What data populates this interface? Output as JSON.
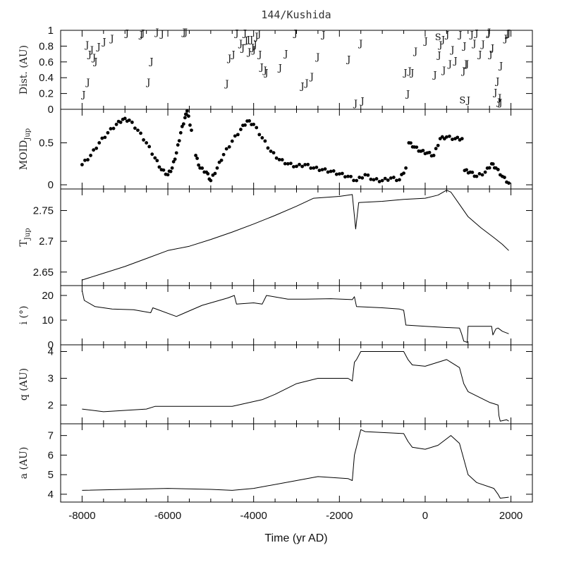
{
  "figure_title": "144/Kushida",
  "x_axis_label": "Time (yr AD)",
  "colors": {
    "ink": "#000000",
    "background": "#ffffff"
  },
  "chart_data": [
    {
      "panel": "distance",
      "type": "scatter",
      "ylabel": "Dist. (AU)",
      "xlim": [
        -8500,
        2500
      ],
      "ylim": [
        0,
        1
      ],
      "yticks": [
        0,
        0.2,
        0.4,
        0.6,
        0.8,
        1
      ],
      "xticks": [
        -8000,
        -6000,
        -4000,
        -2000,
        0,
        2000
      ],
      "marker_note": "points drawn as letters",
      "points": [
        {
          "x": -7960,
          "y": 0.19,
          "m": "J"
        },
        {
          "x": -7880,
          "y": 0.82,
          "m": "J"
        },
        {
          "x": -7860,
          "y": 0.35,
          "m": "J"
        },
        {
          "x": -7820,
          "y": 0.7,
          "m": "J"
        },
        {
          "x": -7770,
          "y": 0.76,
          "m": "J"
        },
        {
          "x": -7720,
          "y": 0.66,
          "m": "J"
        },
        {
          "x": -7680,
          "y": 0.61,
          "m": "J"
        },
        {
          "x": -7610,
          "y": 0.8,
          "m": "J"
        },
        {
          "x": -7480,
          "y": 0.86,
          "m": "J"
        },
        {
          "x": -7300,
          "y": 0.9,
          "m": "J"
        },
        {
          "x": -6950,
          "y": 0.97,
          "m": "J"
        },
        {
          "x": -6620,
          "y": 0.95,
          "m": "J"
        },
        {
          "x": -6580,
          "y": 0.97,
          "m": "J"
        },
        {
          "x": -6450,
          "y": 0.35,
          "m": "J"
        },
        {
          "x": -6380,
          "y": 0.61,
          "m": "J"
        },
        {
          "x": -6250,
          "y": 0.98,
          "m": "J"
        },
        {
          "x": -6130,
          "y": 0.96,
          "m": "J"
        },
        {
          "x": -5620,
          "y": 0.98,
          "m": "J"
        },
        {
          "x": -5580,
          "y": 0.98,
          "m": "J"
        },
        {
          "x": -4620,
          "y": 0.33,
          "m": "J"
        },
        {
          "x": -4560,
          "y": 0.65,
          "m": "J"
        },
        {
          "x": -4470,
          "y": 0.7,
          "m": "J"
        },
        {
          "x": -4390,
          "y": 0.97,
          "m": "J"
        },
        {
          "x": -4300,
          "y": 0.84,
          "m": "J"
        },
        {
          "x": -4250,
          "y": 0.78,
          "m": "J"
        },
        {
          "x": -4200,
          "y": 0.97,
          "m": "J"
        },
        {
          "x": -4170,
          "y": 0.88,
          "m": "J"
        },
        {
          "x": -4120,
          "y": 0.89,
          "m": "J"
        },
        {
          "x": -4100,
          "y": 0.73,
          "m": "J"
        },
        {
          "x": -4050,
          "y": 0.89,
          "m": "J"
        },
        {
          "x": -4020,
          "y": 0.79,
          "m": "J"
        },
        {
          "x": -3990,
          "y": 0.76,
          "m": "J"
        },
        {
          "x": -3960,
          "y": 0.82,
          "m": "J"
        },
        {
          "x": -3930,
          "y": 0.93,
          "m": "J"
        },
        {
          "x": -3870,
          "y": 0.96,
          "m": "J"
        },
        {
          "x": -3850,
          "y": 0.7,
          "m": "J"
        },
        {
          "x": -3810,
          "y": 0.54,
          "m": "J"
        },
        {
          "x": -3730,
          "y": 0.5,
          "m": "J"
        },
        {
          "x": -3700,
          "y": 0.47,
          "m": "J"
        },
        {
          "x": -3380,
          "y": 0.53,
          "m": "J"
        },
        {
          "x": -3240,
          "y": 0.71,
          "m": "J"
        },
        {
          "x": -3020,
          "y": 0.97,
          "m": "J"
        },
        {
          "x": -2860,
          "y": 0.3,
          "m": "J"
        },
        {
          "x": -2760,
          "y": 0.34,
          "m": "J"
        },
        {
          "x": -2640,
          "y": 0.42,
          "m": "J"
        },
        {
          "x": -2500,
          "y": 0.67,
          "m": "J"
        },
        {
          "x": -2370,
          "y": 0.95,
          "m": "J"
        },
        {
          "x": -1780,
          "y": 0.64,
          "m": "J"
        },
        {
          "x": -1620,
          "y": 0.08,
          "m": "J"
        },
        {
          "x": -1500,
          "y": 0.84,
          "m": "J"
        },
        {
          "x": -1460,
          "y": 0.11,
          "m": "J"
        },
        {
          "x": -460,
          "y": 0.47,
          "m": "J"
        },
        {
          "x": -400,
          "y": 0.2,
          "m": "J"
        },
        {
          "x": -360,
          "y": 0.49,
          "m": "J"
        },
        {
          "x": -300,
          "y": 0.47,
          "m": "J"
        },
        {
          "x": -220,
          "y": 0.74,
          "m": "J"
        },
        {
          "x": 20,
          "y": 0.87,
          "m": "J"
        },
        {
          "x": 230,
          "y": 0.44,
          "m": "J"
        },
        {
          "x": 300,
          "y": 0.92,
          "m": "S"
        },
        {
          "x": 330,
          "y": 0.69,
          "m": "J"
        },
        {
          "x": 360,
          "y": 0.82,
          "m": "J"
        },
        {
          "x": 420,
          "y": 0.89,
          "m": "J"
        },
        {
          "x": 440,
          "y": 0.5,
          "m": "J"
        },
        {
          "x": 520,
          "y": 0.95,
          "m": "J"
        },
        {
          "x": 580,
          "y": 0.58,
          "m": "J"
        },
        {
          "x": 640,
          "y": 0.76,
          "m": "J"
        },
        {
          "x": 710,
          "y": 0.62,
          "m": "J"
        },
        {
          "x": 820,
          "y": 0.95,
          "m": "J"
        },
        {
          "x": 870,
          "y": 0.12,
          "m": "S"
        },
        {
          "x": 900,
          "y": 0.49,
          "m": "J"
        },
        {
          "x": 920,
          "y": 0.81,
          "m": "J"
        },
        {
          "x": 950,
          "y": 0.58,
          "m": "J"
        },
        {
          "x": 980,
          "y": 0.58,
          "m": "J"
        },
        {
          "x": 1010,
          "y": 0.12,
          "m": "J"
        },
        {
          "x": 1090,
          "y": 0.95,
          "m": "J"
        },
        {
          "x": 1150,
          "y": 0.84,
          "m": "J"
        },
        {
          "x": 1200,
          "y": 0.97,
          "m": "J"
        },
        {
          "x": 1280,
          "y": 0.7,
          "m": "J"
        },
        {
          "x": 1350,
          "y": 0.83,
          "m": "J"
        },
        {
          "x": 1480,
          "y": 0.97,
          "m": "J"
        },
        {
          "x": 1490,
          "y": 0.98,
          "m": "J"
        },
        {
          "x": 1530,
          "y": 0.7,
          "m": "J"
        },
        {
          "x": 1570,
          "y": 0.78,
          "m": "J"
        },
        {
          "x": 1640,
          "y": 0.22,
          "m": "J"
        },
        {
          "x": 1690,
          "y": 0.36,
          "m": "J"
        },
        {
          "x": 1720,
          "y": 0.1,
          "m": "J"
        },
        {
          "x": 1740,
          "y": 0.15,
          "m": "J"
        },
        {
          "x": 1760,
          "y": 0.09,
          "m": "J"
        },
        {
          "x": 1770,
          "y": 0.56,
          "m": "J"
        },
        {
          "x": 1880,
          "y": 0.9,
          "m": "J"
        },
        {
          "x": 1920,
          "y": 0.96,
          "m": "J"
        },
        {
          "x": 1950,
          "y": 0.97,
          "m": "J"
        }
      ]
    },
    {
      "panel": "moid",
      "type": "scatter",
      "ylabel": "MOID",
      "ylabel_sub": "Jup",
      "xlim": [
        -8500,
        2500
      ],
      "ylim": [
        -0.05,
        0.9
      ],
      "yticks": [
        0,
        0.5
      ],
      "dots": [
        [
          -8000,
          0.24
        ],
        [
          -7800,
          0.35
        ],
        [
          -7600,
          0.5
        ],
        [
          -7400,
          0.62
        ],
        [
          -7200,
          0.72
        ],
        [
          -7050,
          0.78
        ],
        [
          -6900,
          0.77
        ],
        [
          -6700,
          0.65
        ],
        [
          -6500,
          0.5
        ],
        [
          -6300,
          0.32
        ],
        [
          -6150,
          0.18
        ],
        [
          -6000,
          0.12
        ],
        [
          -5900,
          0.2
        ],
        [
          -5800,
          0.38
        ],
        [
          -5700,
          0.62
        ],
        [
          -5600,
          0.8
        ],
        [
          -5550,
          0.88
        ],
        [
          -5450,
          0.65
        ],
        [
          -5350,
          0.35
        ],
        [
          -5250,
          0.2
        ],
        [
          -5100,
          0.15
        ],
        [
          -5000,
          0.05
        ],
        [
          -4850,
          0.2
        ],
        [
          -4700,
          0.36
        ],
        [
          -4500,
          0.52
        ],
        [
          -4300,
          0.66
        ],
        [
          -4150,
          0.76
        ],
        [
          -4000,
          0.72
        ],
        [
          -3800,
          0.56
        ],
        [
          -3600,
          0.4
        ],
        [
          -3400,
          0.3
        ],
        [
          -3200,
          0.25
        ],
        [
          -3000,
          0.22
        ],
        [
          -2800,
          0.24
        ],
        [
          -2600,
          0.2
        ],
        [
          -2400,
          0.18
        ],
        [
          -2200,
          0.16
        ],
        [
          -2000,
          0.13
        ],
        [
          -1800,
          0.1
        ],
        [
          -1600,
          0.05
        ],
        [
          -1400,
          0.12
        ],
        [
          -1200,
          0.06
        ],
        [
          -1000,
          0.05
        ],
        [
          -800,
          0.08
        ],
        [
          -600,
          0.06
        ],
        [
          -450,
          0.2
        ],
        [
          -380,
          0.5
        ],
        [
          -250,
          0.45
        ],
        [
          -100,
          0.4
        ],
        [
          50,
          0.38
        ],
        [
          200,
          0.35
        ],
        [
          350,
          0.55
        ],
        [
          500,
          0.57
        ],
        [
          700,
          0.55
        ],
        [
          860,
          0.55
        ],
        [
          920,
          0.17
        ],
        [
          1050,
          0.15
        ],
        [
          1200,
          0.1
        ],
        [
          1400,
          0.15
        ],
        [
          1550,
          0.25
        ],
        [
          1650,
          0.2
        ],
        [
          1800,
          0.1
        ],
        [
          1950,
          0.02
        ]
      ]
    },
    {
      "panel": "tjup",
      "type": "line",
      "ylabel": "T",
      "ylabel_sub": "Jup",
      "xlim": [
        -8500,
        2500
      ],
      "ylim": [
        2.628,
        2.785
      ],
      "yticks": [
        2.65,
        2.7,
        2.75
      ],
      "x": [
        -8000,
        -7500,
        -7000,
        -6500,
        -6000,
        -5500,
        -5000,
        -4500,
        -4000,
        -3500,
        -3000,
        -2600,
        -2000,
        -1700,
        -1620,
        -1550,
        -1000,
        -500,
        0,
        300,
        500,
        600,
        800,
        1000,
        1300,
        1600,
        1800,
        1950
      ],
      "y": [
        2.637,
        2.648,
        2.659,
        2.672,
        2.685,
        2.692,
        2.703,
        2.715,
        2.728,
        2.742,
        2.757,
        2.77,
        2.773,
        2.776,
        2.72,
        2.763,
        2.765,
        2.768,
        2.77,
        2.775,
        2.783,
        2.78,
        2.76,
        2.74,
        2.722,
        2.706,
        2.695,
        2.685
      ]
    },
    {
      "panel": "inclination",
      "type": "line",
      "ylabel": "i (°)",
      "xlim": [
        -8500,
        2500
      ],
      "ylim": [
        0,
        24
      ],
      "yticks": [
        0,
        10,
        20
      ],
      "x": [
        -8000,
        -7950,
        -7700,
        -7300,
        -6800,
        -6400,
        -6350,
        -5800,
        -5600,
        -5200,
        -4600,
        -4450,
        -4400,
        -4000,
        -3800,
        -3700,
        -3200,
        -2800,
        -2200,
        -1700,
        -1650,
        -1600,
        -1000,
        -600,
        -500,
        -450,
        0,
        500,
        800,
        850,
        900,
        980,
        1000,
        1550,
        1580,
        1650,
        1700,
        1800,
        1950
      ],
      "y": [
        22,
        18,
        15.5,
        14.5,
        14.2,
        13,
        15,
        11.5,
        13,
        16,
        19,
        20,
        16.5,
        17,
        16.5,
        20,
        18.5,
        18.5,
        18.7,
        18.3,
        19.5,
        15.5,
        15,
        14.5,
        14,
        8,
        7.5,
        7,
        6.8,
        4.5,
        1.5,
        1,
        7.5,
        7.5,
        4,
        6.5,
        6.8,
        5.5,
        4.5
      ]
    },
    {
      "panel": "perihelion",
      "type": "line",
      "ylabel": "q (AU)",
      "xlim": [
        -8500,
        2500
      ],
      "ylim": [
        1.3,
        4.25
      ],
      "yticks": [
        2,
        3,
        4
      ],
      "x": [
        -8000,
        -7500,
        -6500,
        -6300,
        -5000,
        -4500,
        -3800,
        -3500,
        -3000,
        -2500,
        -1800,
        -1700,
        -1650,
        -1600,
        -1500,
        -500,
        -400,
        -300,
        0,
        500,
        600,
        800,
        900,
        1000,
        1500,
        1700,
        1720,
        1750,
        1900,
        1950
      ],
      "y": [
        1.85,
        1.75,
        1.85,
        1.95,
        1.95,
        1.95,
        2.2,
        2.4,
        2.8,
        3.0,
        3.0,
        2.9,
        3.6,
        3.7,
        4.0,
        4.0,
        3.7,
        3.5,
        3.45,
        3.7,
        3.6,
        3.4,
        2.8,
        2.5,
        2.1,
        2.0,
        1.6,
        1.4,
        1.45,
        1.4
      ]
    },
    {
      "panel": "semimajor",
      "type": "line",
      "ylabel": "a (AU)",
      "xlim": [
        -8500,
        2500
      ],
      "ylim": [
        3.6,
        7.6
      ],
      "yticks": [
        4,
        5,
        6,
        7
      ],
      "x": [
        -8000,
        -7000,
        -6000,
        -5000,
        -4500,
        -4000,
        -3000,
        -2500,
        -1800,
        -1700,
        -1650,
        -1500,
        -1400,
        -500,
        -400,
        -300,
        0,
        300,
        600,
        800,
        1000,
        1200,
        1600,
        1700,
        1750,
        1950
      ],
      "y": [
        4.2,
        4.25,
        4.3,
        4.25,
        4.2,
        4.3,
        4.7,
        4.9,
        4.8,
        4.7,
        6.0,
        7.3,
        7.2,
        7.1,
        6.7,
        6.4,
        6.3,
        6.5,
        7.0,
        6.6,
        5.0,
        4.6,
        4.3,
        4.0,
        3.8,
        3.85
      ]
    }
  ]
}
